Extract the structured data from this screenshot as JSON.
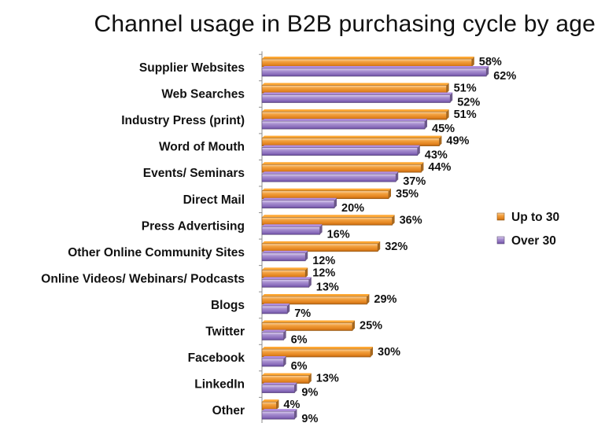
{
  "chart_data": {
    "type": "bar",
    "orientation": "horizontal",
    "title": "Channel usage in B2B purchasing cycle by age",
    "categories": [
      "Supplier Websites",
      "Web Searches",
      "Industry Press (print)",
      "Word of Mouth",
      "Events/ Seminars",
      "Direct Mail",
      "Press Advertising",
      "Other Online Community Sites",
      "Online Videos/ Webinars/ Podcasts",
      "Blogs",
      "Twitter",
      "Facebook",
      "LinkedIn",
      "Other"
    ],
    "series": [
      {
        "name": "Up to 30",
        "color": "#F0962E",
        "values": [
          58,
          51,
          51,
          49,
          44,
          35,
          36,
          32,
          12,
          29,
          25,
          30,
          13,
          4
        ],
        "labels": [
          "58%",
          "51%",
          "51%",
          "49%",
          "44%",
          "35%",
          "36%",
          "32%",
          "12%",
          "29%",
          "25%",
          "30%",
          "13%",
          "4%"
        ]
      },
      {
        "name": "Over 30",
        "color": "#9D80C8",
        "values": [
          62,
          52,
          45,
          43,
          37,
          20,
          16,
          12,
          13,
          7,
          6,
          6,
          9,
          9
        ],
        "labels": [
          "62%",
          "52%",
          "45%",
          "43%",
          "37%",
          "20%",
          "16%",
          "12%",
          "13%",
          "7%",
          "6%",
          "6%",
          "9%",
          "9%"
        ]
      }
    ],
    "legend_position": "right",
    "grid": false
  }
}
